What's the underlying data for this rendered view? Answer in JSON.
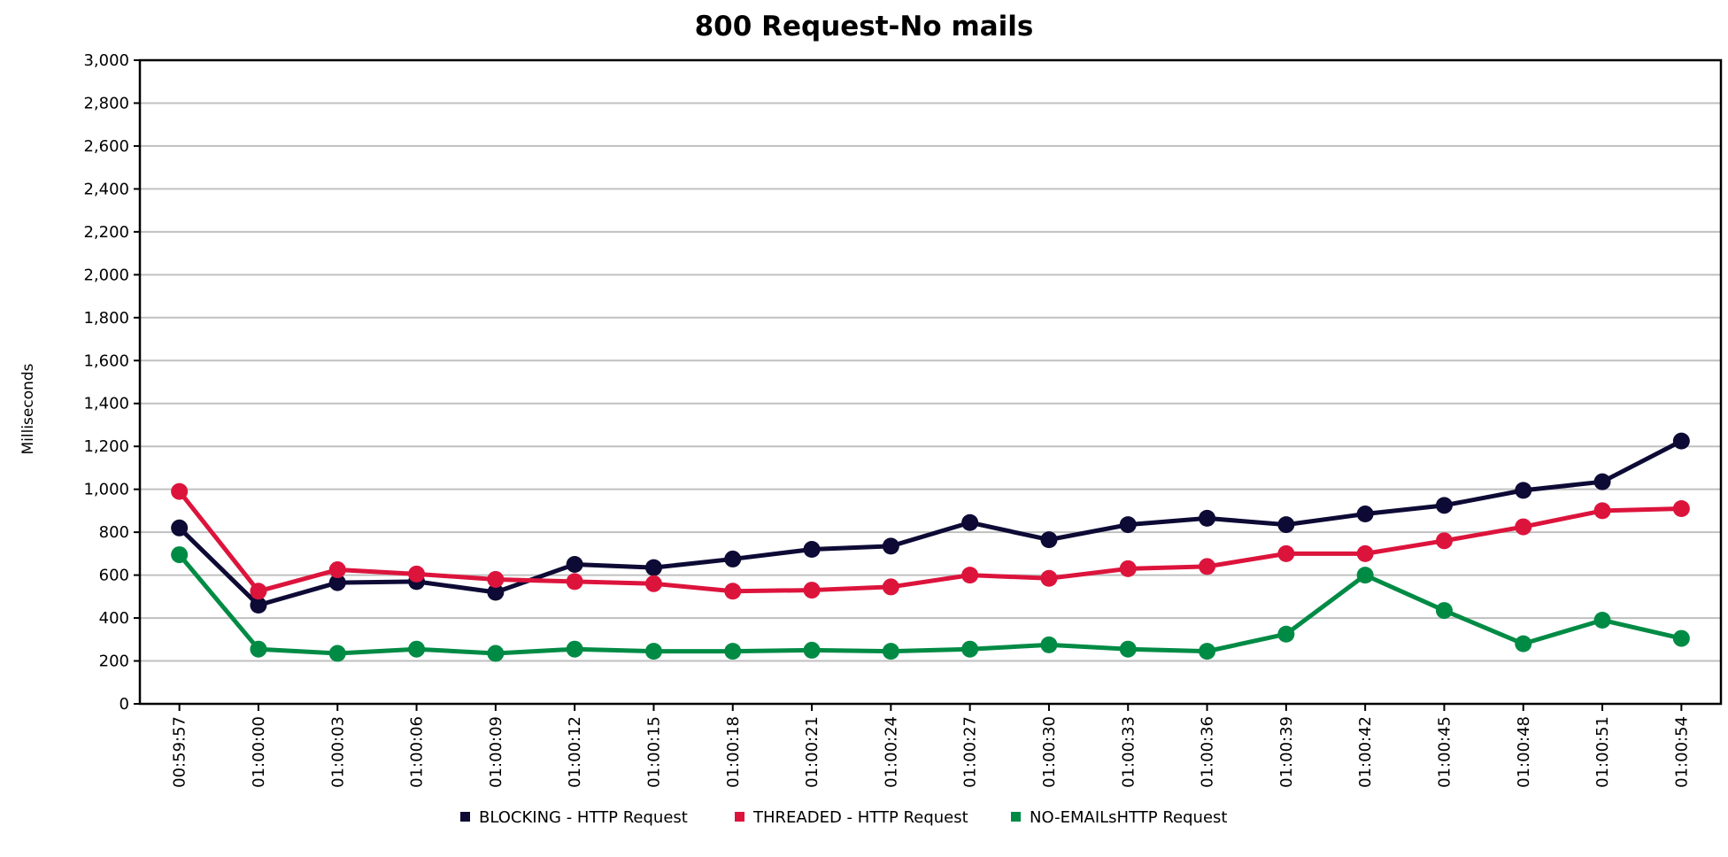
{
  "chart_data": {
    "type": "line",
    "title": "800 Request-No mails",
    "xlabel": "",
    "ylabel": "Milliseconds",
    "ylim": [
      0,
      3000
    ],
    "y_ticks": [
      0,
      200,
      400,
      600,
      800,
      1000,
      1200,
      1400,
      1600,
      1800,
      2000,
      2200,
      2400,
      2600,
      2800,
      3000
    ],
    "y_tick_labels": [
      "0",
      "200",
      "400",
      "600",
      "800",
      "1,000",
      "1,200",
      "1,400",
      "1,600",
      "1,800",
      "2,000",
      "2,200",
      "2,400",
      "2,600",
      "2,800",
      "3,000"
    ],
    "grid": true,
    "legend_position": "bottom-center",
    "categories": [
      "00:59:57",
      "01:00:00",
      "01:00:03",
      "01:00:06",
      "01:00:09",
      "01:00:12",
      "01:00:15",
      "01:00:18",
      "01:00:21",
      "01:00:24",
      "01:00:27",
      "01:00:30",
      "01:00:33",
      "01:00:36",
      "01:00:39",
      "01:00:42",
      "01:00:45",
      "01:00:48",
      "01:00:51",
      "01:00:54"
    ],
    "series": [
      {
        "name": "BLOCKING - HTTP Request",
        "color": "#0d0a35",
        "values": [
          820,
          460,
          565,
          570,
          520,
          650,
          635,
          675,
          720,
          735,
          845,
          765,
          835,
          865,
          835,
          885,
          925,
          995,
          1035,
          1225
        ]
      },
      {
        "name": "THREADED - HTTP Request",
        "color": "#dc143c",
        "values": [
          990,
          525,
          625,
          605,
          580,
          570,
          560,
          525,
          530,
          545,
          600,
          585,
          630,
          640,
          700,
          700,
          760,
          825,
          900,
          910
        ]
      },
      {
        "name": "NO-EMAILsHTTP Request",
        "color": "#008b45",
        "values": [
          695,
          255,
          235,
          255,
          235,
          255,
          245,
          245,
          250,
          245,
          255,
          275,
          255,
          245,
          325,
          600,
          435,
          280,
          390,
          305
        ]
      }
    ]
  }
}
